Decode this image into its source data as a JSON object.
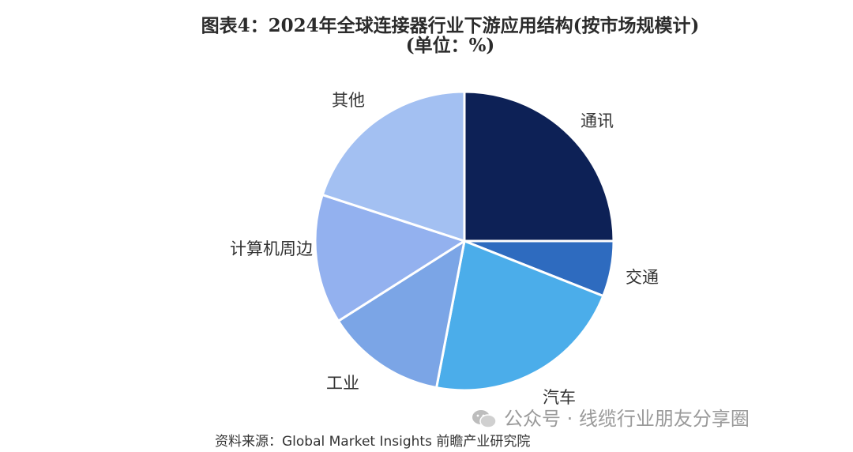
{
  "chart_data": {
    "type": "pie",
    "title": "图表4：2024年全球连接器行业下游应用结构(按市场规模计)(单位：%)",
    "categories": [
      "通讯",
      "交通",
      "汽车",
      "工业",
      "计算机周边",
      "其他"
    ],
    "values": [
      25,
      6,
      22,
      13,
      14,
      20
    ],
    "colors": [
      "#0d2156",
      "#2e6bbf",
      "#4badea",
      "#7ba5e6",
      "#93b1ef",
      "#a3c0f2"
    ],
    "start_angle": "12 o'clock",
    "direction": "clockwise"
  },
  "source": "资料来源：Global Market Insights 前瞻产业研究院",
  "watermark": {
    "text": "公众号 · 线缆行业朋友分享圈",
    "icon": "wechat-icon"
  }
}
